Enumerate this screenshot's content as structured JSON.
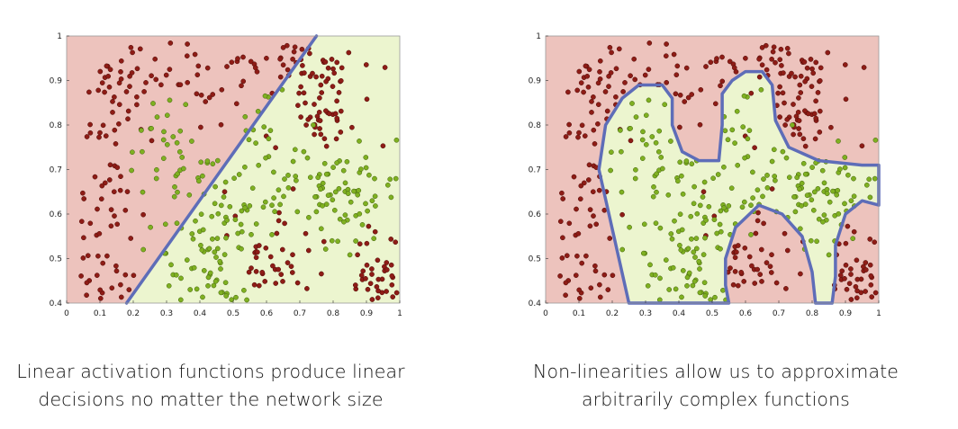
{
  "chart_data": [
    {
      "type": "scatter",
      "xlim": [
        0,
        1
      ],
      "ylim": [
        0.4,
        1
      ],
      "xticks": [
        "0",
        "0.1",
        "0.2",
        "0.3",
        "0.4",
        "0.5",
        "0.6",
        "0.7",
        "0.8",
        "0.9",
        "1"
      ],
      "yticks": [
        "0.4",
        "0.5",
        "0.6",
        "0.7",
        "0.8",
        "0.9",
        "1"
      ],
      "grid": false,
      "region_colors": {
        "red": "#edc3bd",
        "green": "#ecf5cf"
      },
      "boundary": {
        "kind": "linear",
        "color": "#5e6db8",
        "points": [
          [
            0.18,
            0.4
          ],
          [
            0.75,
            1.0
          ]
        ]
      },
      "series": [
        {
          "color": "#8e1c16",
          "clusters": [
            [
              0.12,
              0.82,
              0.1,
              0.12
            ],
            [
              0.45,
              0.94,
              0.2,
              0.05
            ],
            [
              0.75,
              0.85,
              0.08,
              0.08
            ],
            [
              0.1,
              0.52,
              0.08,
              0.1
            ],
            [
              0.58,
              0.52,
              0.1,
              0.08
            ],
            [
              0.93,
              0.47,
              0.08,
              0.07
            ]
          ],
          "count": 290
        },
        {
          "color": "#7fb021",
          "clusters": [
            [
              0.3,
              0.76,
              0.1,
              0.08
            ],
            [
              0.6,
              0.68,
              0.13,
              0.14
            ],
            [
              0.85,
              0.63,
              0.1,
              0.06
            ],
            [
              0.45,
              0.5,
              0.1,
              0.08
            ]
          ],
          "count": 230
        }
      ]
    },
    {
      "type": "scatter",
      "xlim": [
        0,
        1
      ],
      "ylim": [
        0.4,
        1
      ],
      "xticks": [
        "0",
        "0.1",
        "0.2",
        "0.3",
        "0.4",
        "0.5",
        "0.6",
        "0.7",
        "0.8",
        "0.9",
        "1"
      ],
      "yticks": [
        "0.4",
        "0.5",
        "0.6",
        "0.7",
        "0.8",
        "0.9",
        "1"
      ],
      "grid": false,
      "region_colors": {
        "red": "#edc3bd",
        "green": "#ecf5cf"
      },
      "boundary": {
        "kind": "non-linear",
        "color": "#5e6db8"
      },
      "series": [
        {
          "color": "#8e1c16",
          "clusters": [
            [
              0.12,
              0.82,
              0.1,
              0.12
            ],
            [
              0.45,
              0.94,
              0.2,
              0.05
            ],
            [
              0.75,
              0.85,
              0.08,
              0.08
            ],
            [
              0.1,
              0.52,
              0.08,
              0.1
            ],
            [
              0.58,
              0.52,
              0.1,
              0.08
            ],
            [
              0.93,
              0.47,
              0.08,
              0.07
            ]
          ],
          "count": 290
        },
        {
          "color": "#7fb021",
          "clusters": [
            [
              0.3,
              0.76,
              0.1,
              0.08
            ],
            [
              0.6,
              0.68,
              0.13,
              0.14
            ],
            [
              0.85,
              0.63,
              0.1,
              0.06
            ],
            [
              0.45,
              0.5,
              0.1,
              0.08
            ]
          ],
          "count": 230
        }
      ]
    }
  ],
  "captions": {
    "left": {
      "line1": "Linear activation functions produce linear",
      "line2": "decisions no matter the network size"
    },
    "right": {
      "line1": "Non-linearities allow us to approximate",
      "line2": "arbitrarily complex functions"
    }
  }
}
